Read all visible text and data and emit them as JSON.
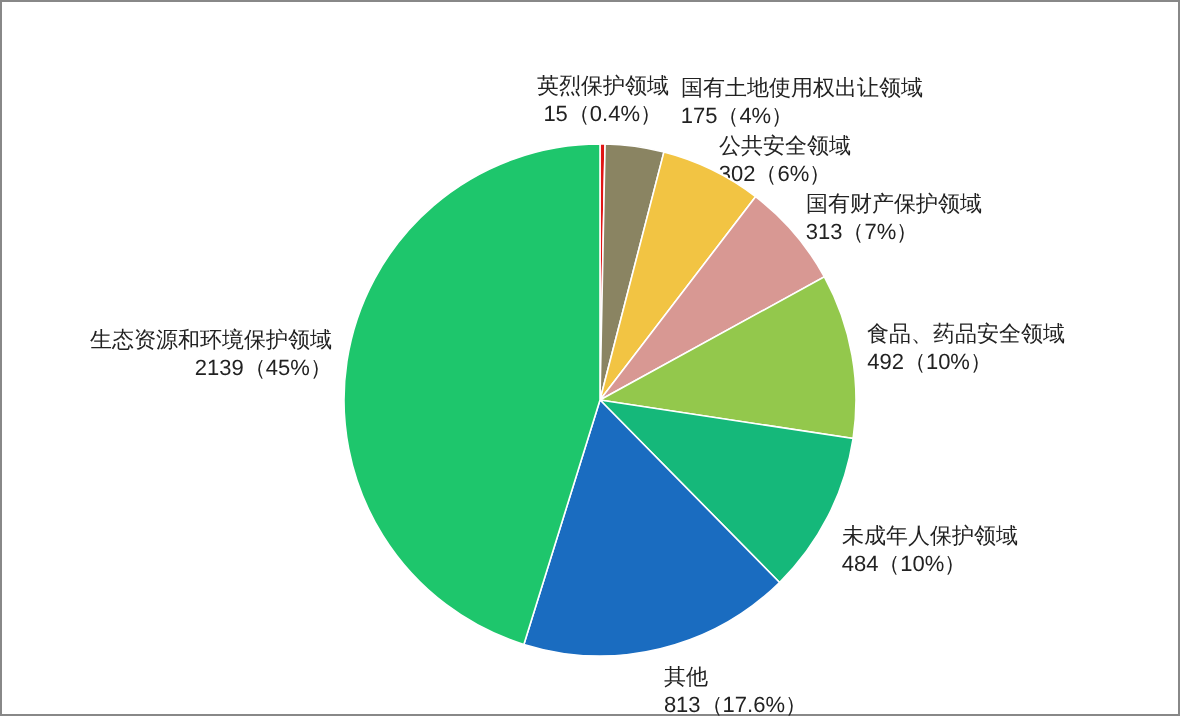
{
  "chart_data": {
    "type": "pie",
    "categories": [
      "英烈保护领域",
      "国有土地使用权出让领域",
      "公共安全领域",
      "国有财产保护领域",
      "食品、药品安全领域",
      "未成年人保护领域",
      "其他",
      "生态资源和环境保护领域"
    ],
    "values": [
      15,
      175,
      302,
      313,
      492,
      484,
      813,
      2139
    ],
    "value_labels": [
      "15（0.4%）",
      "175（4%）",
      "302（6%）",
      "313（7%）",
      "492（10%）",
      "484（10%）",
      "813（17.6%）",
      "2139（45%）"
    ],
    "colors": [
      "#e01414",
      "#8a8462",
      "#f2c443",
      "#d89893",
      "#93c84c",
      "#15b87a",
      "#1a6cc0",
      "#1ec66c"
    ]
  }
}
